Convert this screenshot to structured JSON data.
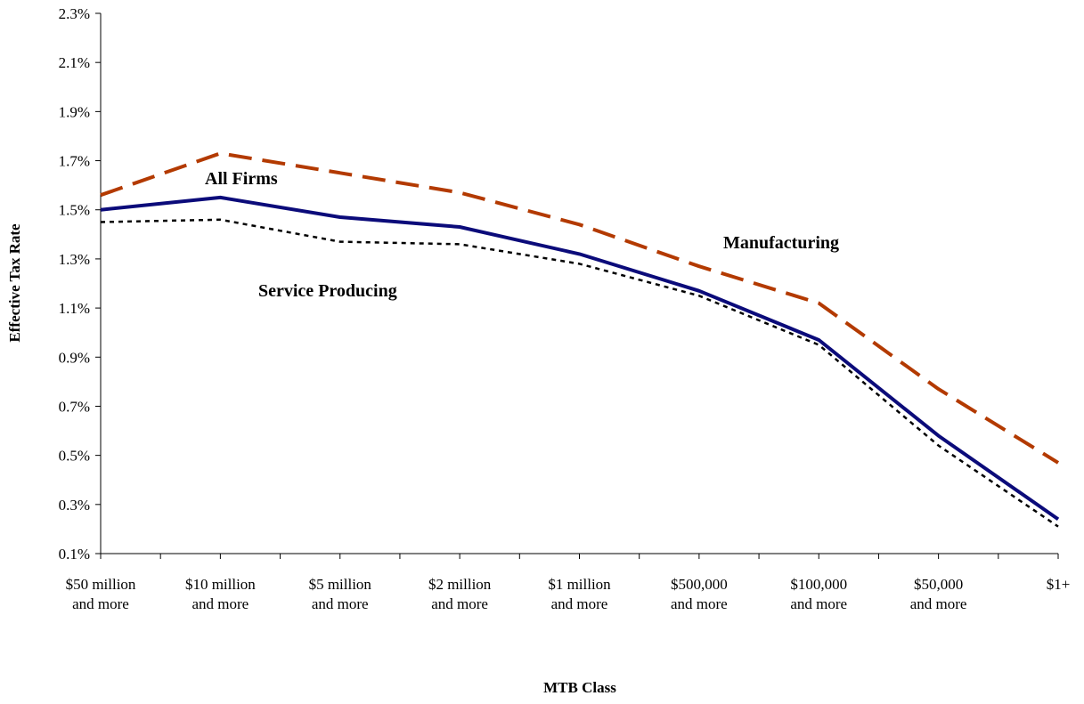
{
  "chart_data": {
    "type": "line",
    "title": "",
    "xlabel": "MTB Class",
    "ylabel": "Effective Tax Rate",
    "ylim": [
      0.1,
      2.3
    ],
    "yticks": [
      "0.1%",
      "0.3%",
      "0.5%",
      "0.7%",
      "0.9%",
      "1.1%",
      "1.3%",
      "1.5%",
      "1.7%",
      "1.9%",
      "2.1%",
      "2.3%"
    ],
    "categories": [
      [
        "$50 million",
        "and more"
      ],
      [
        "$10 million",
        "and more"
      ],
      [
        "$5 million",
        "and more"
      ],
      [
        "$2 million",
        "and more"
      ],
      [
        "$1 million",
        "and more"
      ],
      [
        "$500,000",
        "and more"
      ],
      [
        "$100,000",
        "and more"
      ],
      [
        "$50,000",
        "and more"
      ],
      [
        "$1+"
      ]
    ],
    "grid": false,
    "legend": "inline labels",
    "series": [
      {
        "name": "Manufacturing",
        "values": [
          1.56,
          1.73,
          1.65,
          1.57,
          1.44,
          1.27,
          1.12,
          0.77,
          0.47
        ],
        "color": "#b33a00",
        "style": "dashed"
      },
      {
        "name": "All Firms",
        "values": [
          1.5,
          1.55,
          1.47,
          1.43,
          1.32,
          1.17,
          0.97,
          0.58,
          0.24
        ],
        "color": "#0b0b7a",
        "style": "solid"
      },
      {
        "name": "Service Producing",
        "values": [
          1.45,
          1.46,
          1.37,
          1.36,
          1.28,
          1.15,
          0.95,
          0.54,
          0.21
        ],
        "color": "#000000",
        "style": "dotted"
      }
    ]
  }
}
